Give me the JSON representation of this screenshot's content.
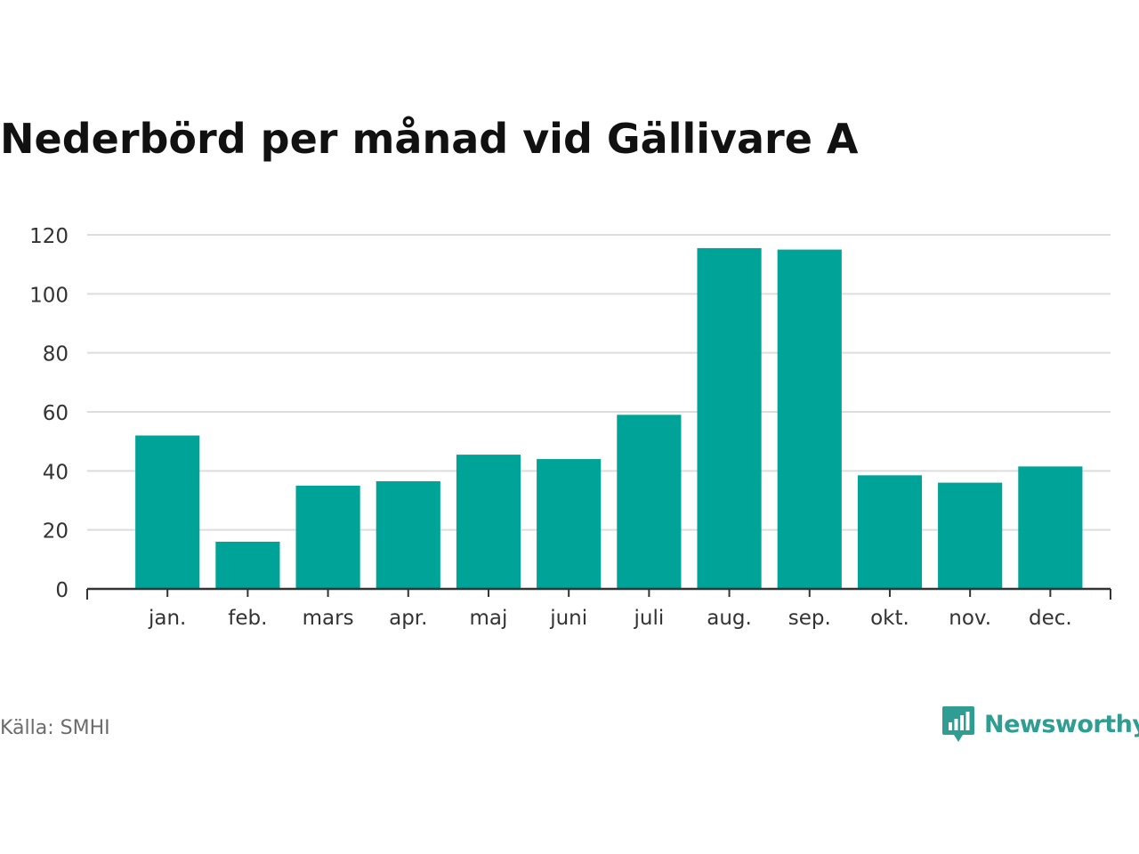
{
  "title": "Nederbörd per månad vid Gällivare A",
  "source": "Källa: SMHI",
  "brand": {
    "name": "Newsworthy",
    "icon": "newsworthy-logo-icon",
    "color": "#2f9d92"
  },
  "chart_data": {
    "type": "bar",
    "title": "Nederbörd per månad vid Gällivare A",
    "xlabel": "",
    "ylabel": "",
    "categories": [
      "jan.",
      "feb.",
      "mars",
      "apr.",
      "maj",
      "juni",
      "juli",
      "aug.",
      "sep.",
      "okt.",
      "nov.",
      "dec."
    ],
    "values": [
      52,
      16,
      35,
      36.5,
      45.5,
      44,
      59,
      115.5,
      115,
      38.5,
      36,
      41.5
    ],
    "ylim": [
      0,
      120
    ],
    "yticks": [
      0,
      20,
      40,
      60,
      80,
      100,
      120
    ],
    "grid": true,
    "bar_color": "#00a398",
    "legend": "none"
  }
}
